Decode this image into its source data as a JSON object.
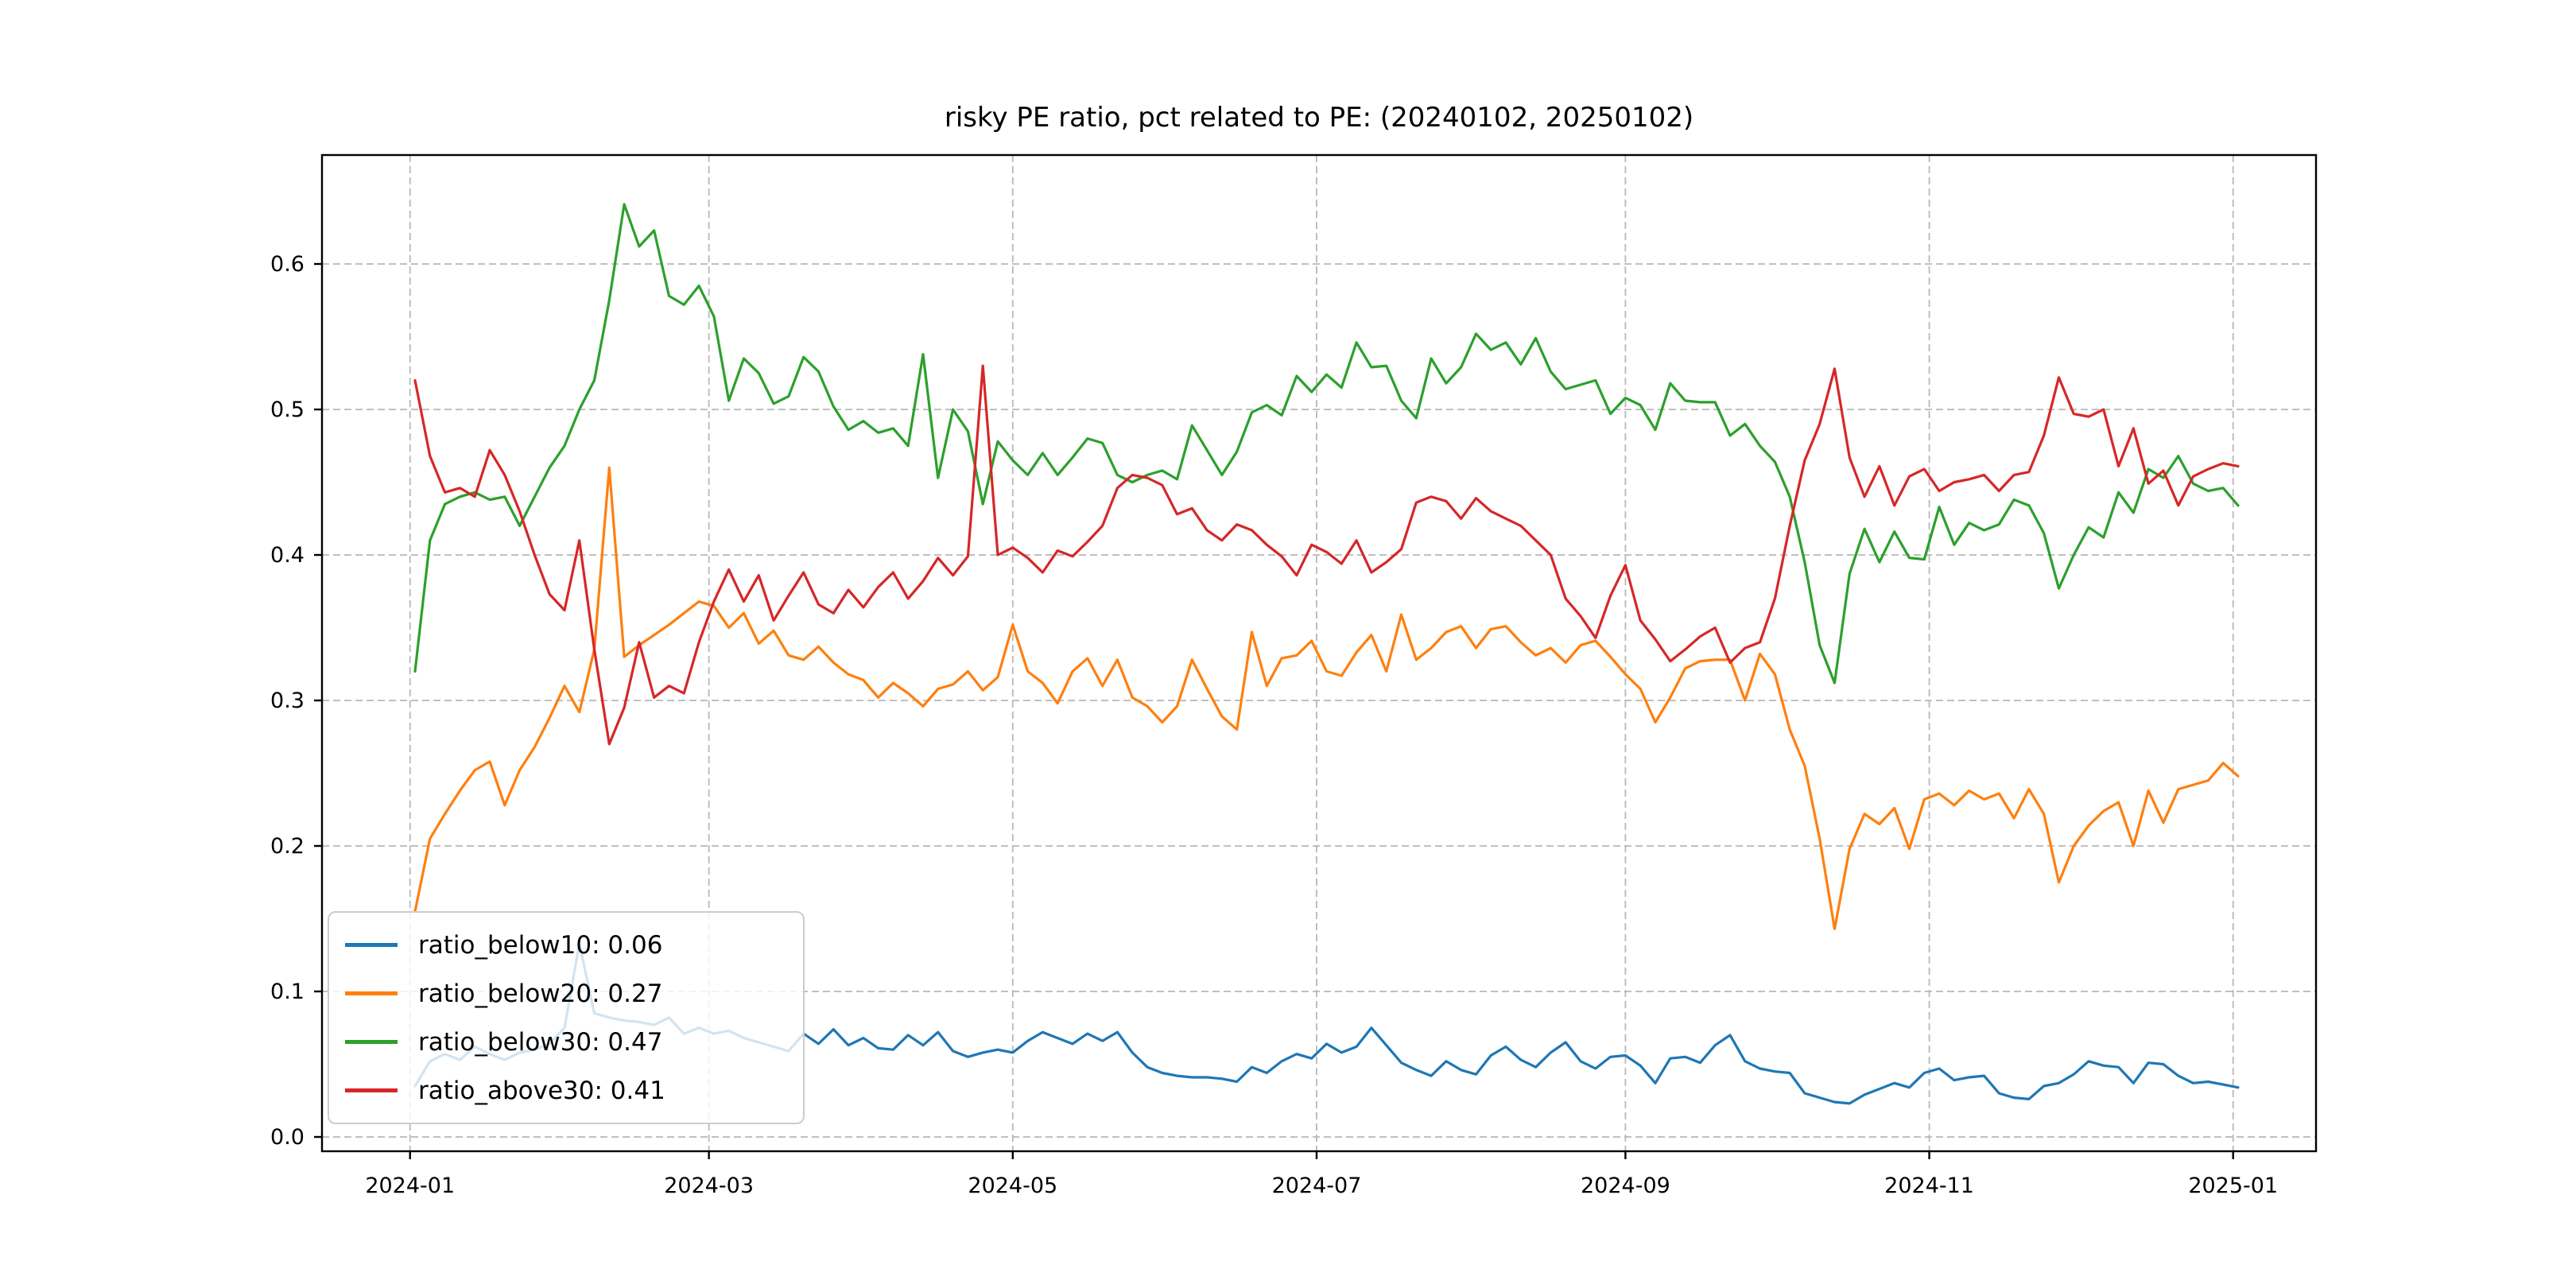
{
  "title": "risky PE ratio, pct related to PE: (20240102, 20250102)",
  "chart_data": {
    "type": "line",
    "title": "risky PE ratio, pct related to PE: (20240102, 20250102)",
    "xlabel": "",
    "ylabel": "",
    "grid": true,
    "grid_style": "dashed",
    "legend_position": "lower left",
    "ylim": [
      -0.01,
      0.675
    ],
    "background_color": "#ffffff",
    "x_ticks": [
      {
        "label": "2024-01",
        "date": "2024-01-01"
      },
      {
        "label": "2024-03",
        "date": "2024-03-01"
      },
      {
        "label": "2024-05",
        "date": "2024-05-01"
      },
      {
        "label": "2024-07",
        "date": "2024-07-01"
      },
      {
        "label": "2024-09",
        "date": "2024-09-01"
      },
      {
        "label": "2024-11",
        "date": "2024-11-01"
      },
      {
        "label": "2025-01",
        "date": "2025-01-01"
      }
    ],
    "y_ticks": [
      {
        "label": "0.0",
        "value": 0.0
      },
      {
        "label": "0.1",
        "value": 0.1
      },
      {
        "label": "0.2",
        "value": 0.2
      },
      {
        "label": "0.3",
        "value": 0.3
      },
      {
        "label": "0.4",
        "value": 0.4
      },
      {
        "label": "0.5",
        "value": 0.5
      },
      {
        "label": "0.6",
        "value": 0.6
      }
    ],
    "dates": [
      "2024-01-02",
      "2024-01-05",
      "2024-01-08",
      "2024-01-11",
      "2024-01-14",
      "2024-01-17",
      "2024-01-20",
      "2024-01-23",
      "2024-01-26",
      "2024-01-29",
      "2024-02-01",
      "2024-02-04",
      "2024-02-07",
      "2024-02-10",
      "2024-02-13",
      "2024-02-16",
      "2024-02-19",
      "2024-02-22",
      "2024-02-25",
      "2024-02-28",
      "2024-03-02",
      "2024-03-05",
      "2024-03-08",
      "2024-03-11",
      "2024-03-14",
      "2024-03-17",
      "2024-03-20",
      "2024-03-23",
      "2024-03-26",
      "2024-03-29",
      "2024-04-01",
      "2024-04-04",
      "2024-04-07",
      "2024-04-10",
      "2024-04-13",
      "2024-04-16",
      "2024-04-19",
      "2024-04-22",
      "2024-04-25",
      "2024-04-28",
      "2024-05-01",
      "2024-05-04",
      "2024-05-07",
      "2024-05-10",
      "2024-05-13",
      "2024-05-16",
      "2024-05-19",
      "2024-05-22",
      "2024-05-25",
      "2024-05-28",
      "2024-05-31",
      "2024-06-03",
      "2024-06-06",
      "2024-06-09",
      "2024-06-12",
      "2024-06-15",
      "2024-06-18",
      "2024-06-21",
      "2024-06-24",
      "2024-06-27",
      "2024-06-30",
      "2024-07-03",
      "2024-07-06",
      "2024-07-09",
      "2024-07-12",
      "2024-07-15",
      "2024-07-18",
      "2024-07-21",
      "2024-07-24",
      "2024-07-27",
      "2024-07-30",
      "2024-08-02",
      "2024-08-05",
      "2024-08-08",
      "2024-08-11",
      "2024-08-14",
      "2024-08-17",
      "2024-08-20",
      "2024-08-23",
      "2024-08-26",
      "2024-08-29",
      "2024-09-01",
      "2024-09-04",
      "2024-09-07",
      "2024-09-10",
      "2024-09-13",
      "2024-09-16",
      "2024-09-19",
      "2024-09-22",
      "2024-09-25",
      "2024-09-28",
      "2024-10-01",
      "2024-10-04",
      "2024-10-07",
      "2024-10-10",
      "2024-10-13",
      "2024-10-16",
      "2024-10-19",
      "2024-10-22",
      "2024-10-25",
      "2024-10-28",
      "2024-10-31",
      "2024-11-03",
      "2024-11-06",
      "2024-11-09",
      "2024-11-12",
      "2024-11-15",
      "2024-11-18",
      "2024-11-21",
      "2024-11-24",
      "2024-11-27",
      "2024-11-30",
      "2024-12-03",
      "2024-12-06",
      "2024-12-09",
      "2024-12-12",
      "2024-12-15",
      "2024-12-18",
      "2024-12-21",
      "2024-12-24",
      "2024-12-27",
      "2024-12-30",
      "2025-01-02"
    ],
    "series": [
      {
        "name": "ratio_below10",
        "legend_label": "ratio_below10: 0.06",
        "color": "#1f77b4",
        "values": [
          0.035,
          0.052,
          0.057,
          0.053,
          0.062,
          0.057,
          0.053,
          0.058,
          0.06,
          0.064,
          0.075,
          0.133,
          0.085,
          0.082,
          0.08,
          0.079,
          0.077,
          0.082,
          0.071,
          0.075,
          0.071,
          0.073,
          0.068,
          0.065,
          0.062,
          0.059,
          0.071,
          0.064,
          0.074,
          0.063,
          0.068,
          0.061,
          0.06,
          0.07,
          0.063,
          0.072,
          0.059,
          0.055,
          0.058,
          0.06,
          0.058,
          0.066,
          0.072,
          0.068,
          0.064,
          0.071,
          0.066,
          0.072,
          0.058,
          0.048,
          0.044,
          0.042,
          0.041,
          0.041,
          0.04,
          0.038,
          0.048,
          0.044,
          0.052,
          0.057,
          0.054,
          0.064,
          0.058,
          0.062,
          0.075,
          0.063,
          0.051,
          0.046,
          0.042,
          0.052,
          0.046,
          0.043,
          0.056,
          0.062,
          0.053,
          0.048,
          0.058,
          0.065,
          0.052,
          0.047,
          0.055,
          0.056,
          0.049,
          0.037,
          0.054,
          0.055,
          0.051,
          0.063,
          0.07,
          0.052,
          0.047,
          0.045,
          0.044,
          0.03,
          0.027,
          0.024,
          0.023,
          0.029,
          0.033,
          0.037,
          0.034,
          0.044,
          0.047,
          0.039,
          0.041,
          0.042,
          0.03,
          0.027,
          0.026,
          0.035,
          0.037,
          0.043,
          0.052,
          0.049,
          0.048,
          0.037,
          0.051,
          0.05,
          0.042,
          0.037,
          0.038,
          0.036,
          0.034
        ]
      },
      {
        "name": "ratio_below20",
        "legend_label": "ratio_below20: 0.27",
        "color": "#ff7f0e",
        "values": [
          0.155,
          0.205,
          0.222,
          0.238,
          0.252,
          0.258,
          0.228,
          0.252,
          0.268,
          0.288,
          0.31,
          0.292,
          0.335,
          0.46,
          0.33,
          0.338,
          0.345,
          0.352,
          0.36,
          0.368,
          0.365,
          0.35,
          0.36,
          0.339,
          0.348,
          0.331,
          0.328,
          0.337,
          0.326,
          0.318,
          0.314,
          0.302,
          0.312,
          0.305,
          0.296,
          0.308,
          0.311,
          0.32,
          0.307,
          0.316,
          0.352,
          0.32,
          0.312,
          0.298,
          0.32,
          0.329,
          0.31,
          0.328,
          0.302,
          0.296,
          0.285,
          0.296,
          0.328,
          0.308,
          0.289,
          0.28,
          0.347,
          0.31,
          0.329,
          0.331,
          0.341,
          0.32,
          0.317,
          0.333,
          0.345,
          0.32,
          0.359,
          0.328,
          0.336,
          0.347,
          0.351,
          0.336,
          0.349,
          0.351,
          0.34,
          0.331,
          0.336,
          0.326,
          0.338,
          0.341,
          0.33,
          0.318,
          0.308,
          0.285,
          0.302,
          0.322,
          0.327,
          0.328,
          0.328,
          0.3,
          0.332,
          0.318,
          0.28,
          0.255,
          0.205,
          0.143,
          0.198,
          0.222,
          0.215,
          0.226,
          0.198,
          0.232,
          0.236,
          0.228,
          0.238,
          0.232,
          0.236,
          0.219,
          0.239,
          0.222,
          0.175,
          0.2,
          0.214,
          0.224,
          0.23,
          0.2,
          0.238,
          0.216,
          0.239,
          0.242,
          0.245,
          0.257,
          0.248
        ]
      },
      {
        "name": "ratio_below30",
        "legend_label": "ratio_below30: 0.47",
        "color": "#2ca02c",
        "values": [
          0.32,
          0.41,
          0.435,
          0.44,
          0.443,
          0.438,
          0.44,
          0.42,
          0.44,
          0.46,
          0.475,
          0.5,
          0.52,
          0.575,
          0.641,
          0.612,
          0.623,
          0.578,
          0.572,
          0.585,
          0.564,
          0.506,
          0.535,
          0.525,
          0.504,
          0.509,
          0.536,
          0.526,
          0.502,
          0.486,
          0.492,
          0.484,
          0.487,
          0.475,
          0.538,
          0.453,
          0.5,
          0.485,
          0.435,
          0.478,
          0.465,
          0.455,
          0.47,
          0.455,
          0.467,
          0.48,
          0.477,
          0.455,
          0.45,
          0.455,
          0.458,
          0.452,
          0.489,
          0.472,
          0.455,
          0.471,
          0.498,
          0.503,
          0.496,
          0.523,
          0.512,
          0.524,
          0.515,
          0.546,
          0.529,
          0.53,
          0.506,
          0.494,
          0.535,
          0.518,
          0.529,
          0.552,
          0.541,
          0.546,
          0.531,
          0.549,
          0.526,
          0.514,
          0.517,
          0.52,
          0.497,
          0.508,
          0.503,
          0.486,
          0.518,
          0.506,
          0.505,
          0.505,
          0.482,
          0.49,
          0.475,
          0.464,
          0.44,
          0.395,
          0.338,
          0.312,
          0.387,
          0.418,
          0.395,
          0.416,
          0.398,
          0.397,
          0.433,
          0.407,
          0.422,
          0.417,
          0.421,
          0.438,
          0.434,
          0.415,
          0.377,
          0.4,
          0.419,
          0.412,
          0.443,
          0.429,
          0.459,
          0.453,
          0.468,
          0.449,
          0.444,
          0.446,
          0.434
        ]
      },
      {
        "name": "ratio_above30",
        "legend_label": "ratio_above30: 0.41",
        "color": "#d62728",
        "values": [
          0.52,
          0.468,
          0.443,
          0.446,
          0.44,
          0.472,
          0.455,
          0.43,
          0.4,
          0.373,
          0.362,
          0.41,
          0.335,
          0.27,
          0.295,
          0.34,
          0.302,
          0.31,
          0.305,
          0.34,
          0.368,
          0.39,
          0.368,
          0.386,
          0.355,
          0.372,
          0.388,
          0.366,
          0.36,
          0.376,
          0.364,
          0.378,
          0.388,
          0.37,
          0.382,
          0.398,
          0.386,
          0.399,
          0.53,
          0.4,
          0.405,
          0.398,
          0.388,
          0.403,
          0.399,
          0.409,
          0.42,
          0.446,
          0.455,
          0.453,
          0.448,
          0.428,
          0.432,
          0.417,
          0.41,
          0.421,
          0.417,
          0.407,
          0.399,
          0.386,
          0.407,
          0.402,
          0.394,
          0.41,
          0.388,
          0.395,
          0.404,
          0.436,
          0.44,
          0.437,
          0.425,
          0.439,
          0.43,
          0.425,
          0.42,
          0.41,
          0.4,
          0.37,
          0.358,
          0.343,
          0.372,
          0.393,
          0.355,
          0.342,
          0.327,
          0.335,
          0.344,
          0.35,
          0.326,
          0.336,
          0.34,
          0.37,
          0.42,
          0.465,
          0.49,
          0.528,
          0.467,
          0.44,
          0.461,
          0.434,
          0.454,
          0.459,
          0.444,
          0.45,
          0.452,
          0.455,
          0.444,
          0.455,
          0.457,
          0.482,
          0.522,
          0.497,
          0.495,
          0.5,
          0.461,
          0.487,
          0.449,
          0.458,
          0.434,
          0.454,
          0.459,
          0.463,
          0.461
        ]
      }
    ]
  },
  "legend": {
    "items": [
      {
        "label": "ratio_below10: 0.06",
        "color": "#1f77b4"
      },
      {
        "label": "ratio_below20: 0.27",
        "color": "#ff7f0e"
      },
      {
        "label": "ratio_below30: 0.47",
        "color": "#2ca02c"
      },
      {
        "label": "ratio_above30: 0.41",
        "color": "#d62728"
      }
    ]
  }
}
